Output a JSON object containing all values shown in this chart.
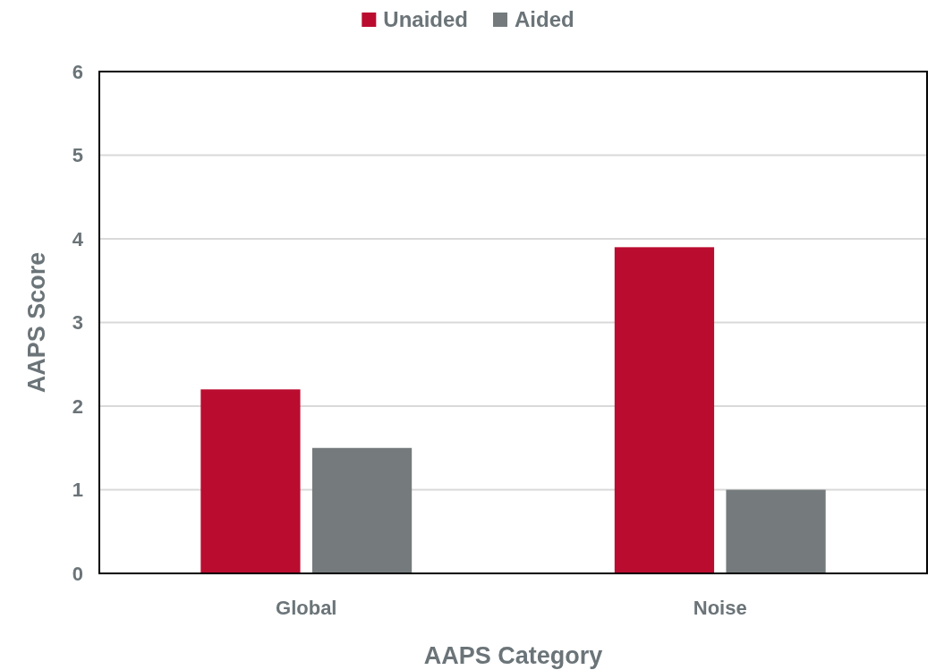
{
  "chart_data": {
    "type": "bar",
    "xlabel": "AAPS Category",
    "ylabel": "AAPS Score",
    "categories": [
      "Global",
      "Noise"
    ],
    "series": [
      {
        "name": "Unaided",
        "color": "#ba0c2f",
        "values": [
          2.2,
          3.9
        ]
      },
      {
        "name": "Aided",
        "color": "#757b7d",
        "values": [
          1.5,
          1.0
        ]
      }
    ],
    "ylim": [
      0,
      6
    ],
    "yticks": [
      0,
      1,
      2,
      3,
      4,
      5,
      6
    ],
    "grid": "y",
    "legend": "top"
  }
}
